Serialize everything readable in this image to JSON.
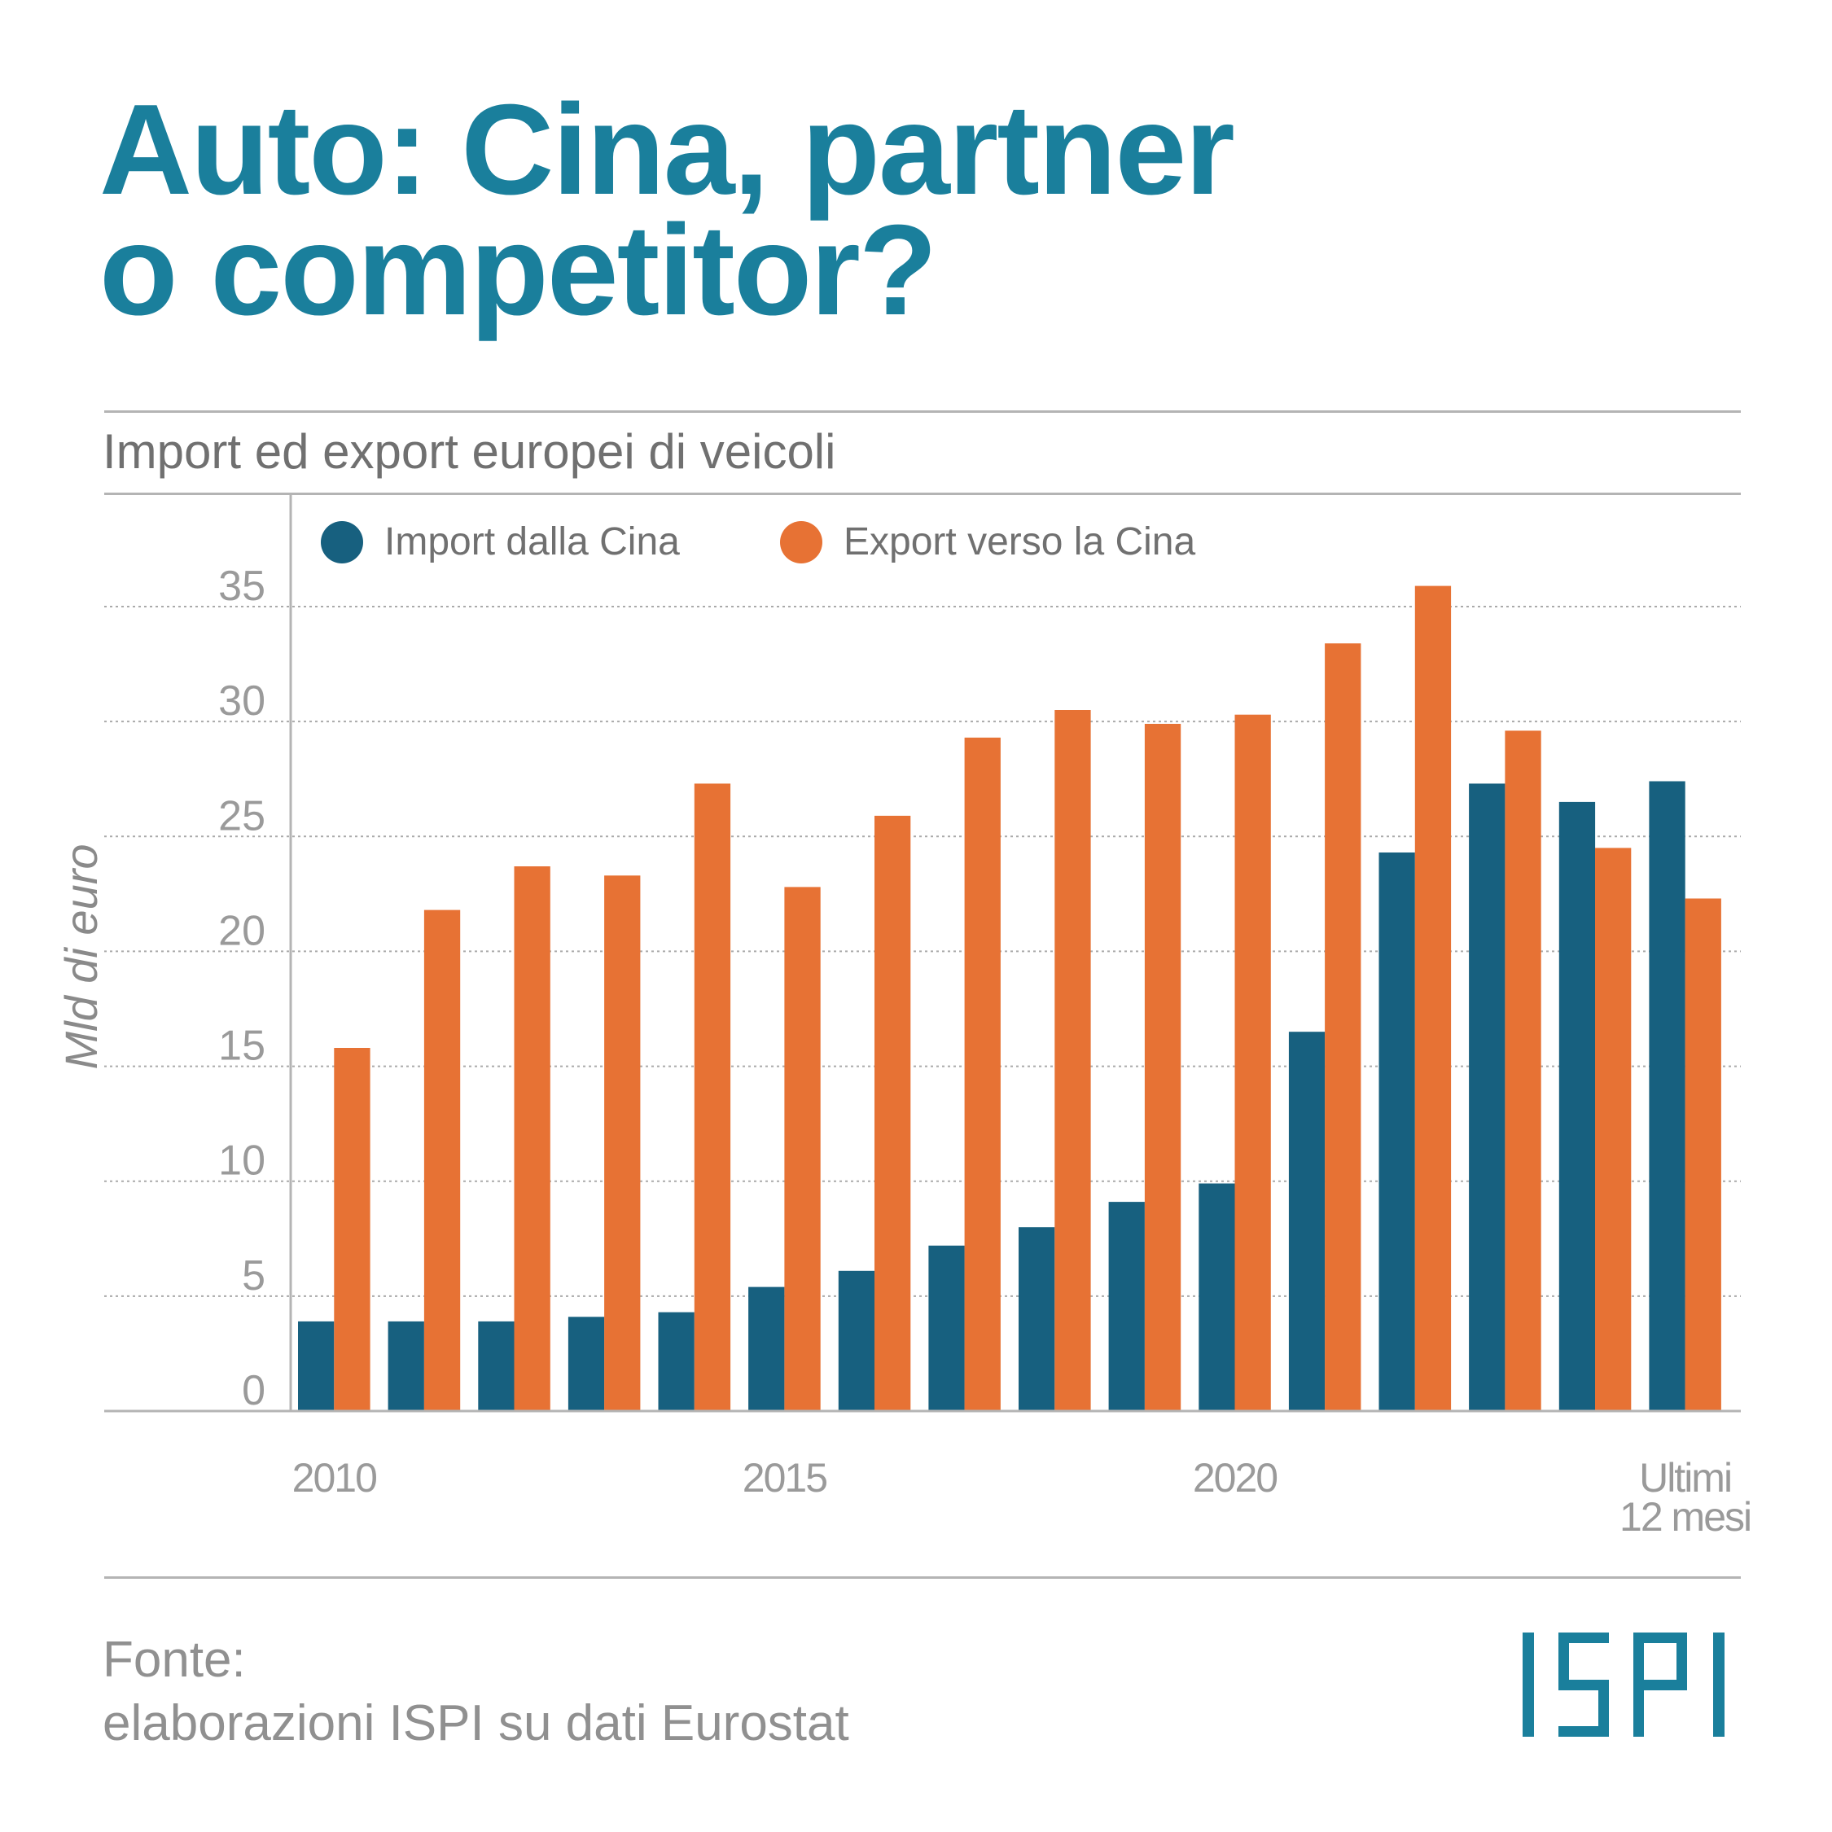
{
  "header": {
    "title_line1": "Auto: Cina, partner",
    "title_line2": "o competitor?",
    "subtitle": "Import ed export europei di veicoli"
  },
  "colors": {
    "title": "#1a7f9c",
    "import": "#17607f",
    "export": "#e77234",
    "grid": "#aaaaaa",
    "axis": "#b4b4b4"
  },
  "chart_data": {
    "type": "bar",
    "title": "Import ed export europei di veicoli",
    "ylabel": "Mld di euro",
    "xlabel": "",
    "ylim": [
      0,
      36
    ],
    "yticks": [
      0,
      5,
      10,
      15,
      20,
      25,
      30,
      35
    ],
    "grid": true,
    "legend_position": "top-left",
    "categories": [
      "2010",
      "2011",
      "2012",
      "2013",
      "2014",
      "2015",
      "2016",
      "2017",
      "2018",
      "2019",
      "2020",
      "2021",
      "2022",
      "2023",
      "2024",
      "Ultimi 12 mesi"
    ],
    "xtick_labels": [
      {
        "index": 0,
        "lines": [
          "2010"
        ]
      },
      {
        "index": 5,
        "lines": [
          "2015"
        ]
      },
      {
        "index": 10,
        "lines": [
          "2020"
        ]
      },
      {
        "index": 15,
        "lines": [
          "Ultimi",
          "12 mesi"
        ]
      }
    ],
    "series": [
      {
        "name": "Import dalla Cina",
        "color": "#17607f",
        "values": [
          3.9,
          3.9,
          3.9,
          4.1,
          4.3,
          5.4,
          6.1,
          7.2,
          8.0,
          9.1,
          9.9,
          16.5,
          24.3,
          27.3,
          26.5,
          27.4
        ]
      },
      {
        "name": "Export verso la Cina",
        "color": "#e77234",
        "values": [
          15.8,
          21.8,
          23.7,
          23.3,
          27.3,
          22.8,
          25.9,
          29.3,
          30.5,
          29.9,
          30.3,
          33.4,
          35.9,
          29.6,
          24.5,
          22.3
        ]
      }
    ]
  },
  "source": {
    "line1": "Fonte:",
    "line2": "elaborazioni ISPI su dati Eurostat"
  },
  "logo": {
    "text": "ISPI"
  }
}
